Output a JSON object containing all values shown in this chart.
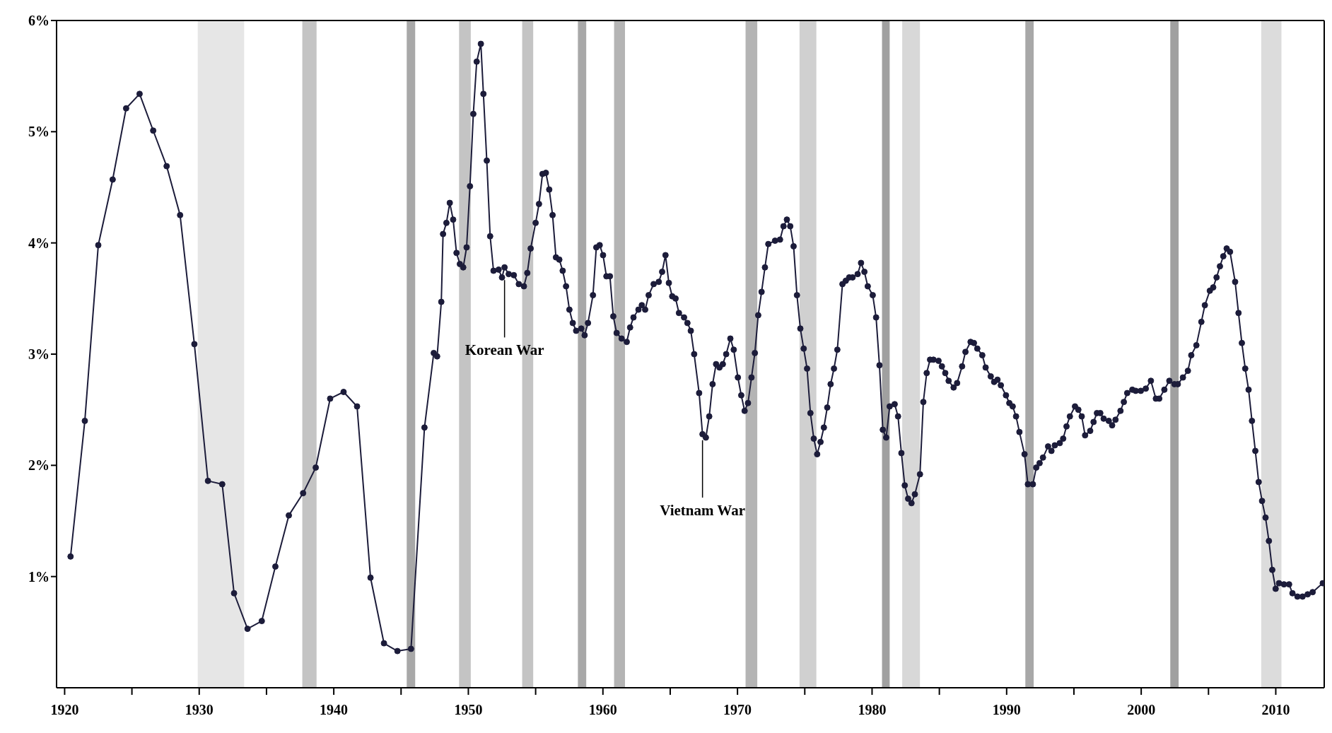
{
  "chart_data": {
    "type": "line",
    "color": "#1c1c3a",
    "marker": "circle",
    "line_style": "solid",
    "x": [
      1920.44,
      1921.5,
      1922.5,
      1923.57,
      1924.57,
      1925.57,
      1926.58,
      1927.58,
      1928.58,
      1929.64,
      1930.65,
      1931.71,
      1932.59,
      1933.59,
      1934.65,
      1935.66,
      1936.66,
      1937.72,
      1938.66,
      1939.73,
      1940.73,
      1941.73,
      1942.73,
      1943.73,
      1944.73,
      1945.74,
      1946.74,
      1947.43,
      1947.68,
      1947.99,
      1948.12,
      1948.37,
      1948.62,
      1948.87,
      1949.12,
      1949.37,
      1949.62,
      1949.87,
      1950.12,
      1950.37,
      1950.62,
      1950.93,
      1951.12,
      1951.37,
      1951.62,
      1951.87,
      1952.25,
      1952.5,
      1952.69,
      1953.0,
      1953.38,
      1953.75,
      1954.13,
      1954.38,
      1954.63,
      1955.0,
      1955.25,
      1955.51,
      1955.76,
      1956.01,
      1956.26,
      1956.51,
      1956.76,
      1957.01,
      1957.26,
      1957.51,
      1957.76,
      1958.01,
      1958.39,
      1958.64,
      1958.89,
      1959.26,
      1959.51,
      1959.76,
      1960.01,
      1960.26,
      1960.52,
      1960.77,
      1961.02,
      1961.39,
      1961.77,
      1962.02,
      1962.27,
      1962.64,
      1962.89,
      1963.14,
      1963.4,
      1963.77,
      1964.15,
      1964.4,
      1964.65,
      1964.9,
      1965.15,
      1965.4,
      1965.65,
      1966.03,
      1966.28,
      1966.53,
      1966.78,
      1967.15,
      1967.4,
      1967.65,
      1967.9,
      1968.15,
      1968.41,
      1968.66,
      1968.91,
      1969.16,
      1969.47,
      1969.72,
      1970.03,
      1970.28,
      1970.53,
      1970.78,
      1971.04,
      1971.29,
      1971.54,
      1971.79,
      1972.04,
      1972.29,
      1972.79,
      1973.16,
      1973.42,
      1973.67,
      1973.92,
      1974.17,
      1974.42,
      1974.67,
      1974.92,
      1975.17,
      1975.42,
      1975.67,
      1975.92,
      1976.17,
      1976.42,
      1976.67,
      1976.92,
      1977.17,
      1977.42,
      1977.8,
      1978.05,
      1978.3,
      1978.55,
      1978.93,
      1979.18,
      1979.43,
      1979.68,
      1980.05,
      1980.3,
      1980.55,
      1980.8,
      1981.05,
      1981.31,
      1981.68,
      1981.93,
      1982.18,
      1982.43,
      1982.68,
      1982.93,
      1983.18,
      1983.56,
      1983.81,
      1984.06,
      1984.31,
      1984.56,
      1984.94,
      1985.19,
      1985.44,
      1985.69,
      1986.06,
      1986.32,
      1986.69,
      1986.94,
      1987.32,
      1987.57,
      1987.82,
      1988.19,
      1988.44,
      1988.82,
      1989.07,
      1989.32,
      1989.57,
      1989.95,
      1990.2,
      1990.45,
      1990.7,
      1990.95,
      1991.33,
      1991.58,
      1991.95,
      1992.2,
      1992.45,
      1992.7,
      1993.08,
      1993.33,
      1993.58,
      1993.95,
      1994.2,
      1994.45,
      1994.7,
      1995.08,
      1995.33,
      1995.58,
      1995.83,
      1996.21,
      1996.46,
      1996.71,
      1996.96,
      1997.21,
      1997.59,
      1997.84,
      1998.09,
      1998.46,
      1998.71,
      1998.96,
      1999.34,
      1999.59,
      1999.97,
      2000.34,
      2000.72,
      2001.09,
      2001.34,
      2001.72,
      2002.09,
      2002.47,
      2002.72,
      2003.1,
      2003.47,
      2003.72,
      2004.1,
      2004.47,
      2004.73,
      2005.1,
      2005.35,
      2005.6,
      2005.85,
      2006.1,
      2006.35,
      2006.6,
      2006.98,
      2007.23,
      2007.48,
      2007.73,
      2007.98,
      2008.23,
      2008.48,
      2008.73,
      2008.98,
      2009.24,
      2009.49,
      2009.74,
      2009.99,
      2010.24,
      2010.61,
      2010.99,
      2011.24,
      2011.61,
      2011.99,
      2012.37,
      2012.74,
      2013.49
    ],
    "values": [
      1.18,
      2.4,
      3.98,
      4.57,
      5.21,
      5.34,
      5.01,
      4.69,
      4.25,
      3.09,
      1.86,
      1.83,
      0.85,
      0.53,
      0.6,
      1.09,
      1.55,
      1.75,
      1.98,
      2.6,
      2.66,
      2.53,
      0.99,
      0.4,
      0.33,
      0.35,
      2.34,
      3.01,
      2.98,
      3.47,
      4.08,
      4.18,
      4.36,
      4.21,
      3.91,
      3.81,
      3.78,
      3.96,
      4.51,
      5.16,
      5.63,
      5.79,
      5.34,
      4.74,
      4.06,
      3.75,
      3.76,
      3.69,
      3.78,
      3.72,
      3.71,
      3.63,
      3.61,
      3.73,
      3.95,
      4.18,
      4.35,
      4.62,
      4.63,
      4.48,
      4.25,
      3.87,
      3.85,
      3.75,
      3.61,
      3.4,
      3.28,
      3.21,
      3.23,
      3.17,
      3.28,
      3.53,
      3.96,
      3.98,
      3.89,
      3.7,
      3.7,
      3.34,
      3.19,
      3.14,
      3.11,
      3.24,
      3.33,
      3.4,
      3.44,
      3.4,
      3.53,
      3.63,
      3.65,
      3.74,
      3.89,
      3.64,
      3.52,
      3.5,
      3.37,
      3.33,
      3.28,
      3.21,
      3.0,
      2.65,
      2.28,
      2.25,
      2.44,
      2.73,
      2.91,
      2.88,
      2.91,
      3.0,
      3.14,
      3.04,
      2.79,
      2.63,
      2.49,
      2.56,
      2.79,
      3.01,
      3.35,
      3.56,
      3.78,
      3.99,
      4.02,
      4.03,
      4.15,
      4.21,
      4.15,
      3.97,
      3.53,
      3.23,
      3.05,
      2.87,
      2.47,
      2.24,
      2.1,
      2.21,
      2.34,
      2.52,
      2.73,
      2.87,
      3.04,
      3.63,
      3.66,
      3.69,
      3.69,
      3.72,
      3.82,
      3.74,
      3.61,
      3.53,
      3.33,
      2.9,
      2.32,
      2.25,
      2.53,
      2.55,
      2.44,
      2.11,
      1.82,
      1.7,
      1.66,
      1.74,
      1.92,
      2.57,
      2.83,
      2.95,
      2.95,
      2.94,
      2.89,
      2.83,
      2.76,
      2.7,
      2.74,
      2.89,
      3.02,
      3.11,
      3.1,
      3.05,
      2.99,
      2.88,
      2.8,
      2.75,
      2.77,
      2.72,
      2.63,
      2.56,
      2.53,
      2.44,
      2.3,
      2.1,
      1.83,
      1.83,
      1.98,
      2.02,
      2.07,
      2.17,
      2.13,
      2.18,
      2.2,
      2.24,
      2.35,
      2.44,
      2.53,
      2.5,
      2.44,
      2.27,
      2.31,
      2.39,
      2.47,
      2.47,
      2.42,
      2.4,
      2.36,
      2.41,
      2.49,
      2.57,
      2.65,
      2.68,
      2.67,
      2.67,
      2.69,
      2.76,
      2.6,
      2.6,
      2.68,
      2.76,
      2.73,
      2.73,
      2.79,
      2.85,
      2.99,
      3.08,
      3.29,
      3.44,
      3.57,
      3.6,
      3.69,
      3.79,
      3.88,
      3.95,
      3.92,
      3.65,
      3.37,
      3.1,
      2.87,
      2.68,
      2.4,
      2.13,
      1.85,
      1.68,
      1.53,
      1.32,
      1.06,
      0.89,
      0.94,
      0.93,
      0.93,
      0.85,
      0.82,
      0.82,
      0.84,
      0.86,
      0.94
    ],
    "xlim": [
      1919.4,
      2013.6
    ],
    "xticks": [
      1920,
      {
        "value": 1925,
        "label": null
      },
      1930,
      {
        "value": 1935,
        "label": null
      },
      1940,
      {
        "value": 1945,
        "label": null
      },
      1950,
      {
        "value": 1955,
        "label": null
      },
      1960,
      {
        "value": 1965,
        "label": null
      },
      1970,
      {
        "value": 1975,
        "label": null
      },
      1980,
      {
        "value": 1985,
        "label": null
      },
      1990,
      {
        "value": 1995,
        "label": null
      },
      2000,
      {
        "value": 2005,
        "label": null
      },
      2010
    ],
    "ylim": [
      0,
      6
    ],
    "yticks": [
      {
        "value": 1,
        "label": "1%"
      },
      {
        "value": 2,
        "label": "2%"
      },
      {
        "value": 3,
        "label": "3%"
      },
      {
        "value": 4,
        "label": "4%"
      },
      {
        "value": 5,
        "label": "5%"
      },
      {
        "value": 6,
        "label": "6%"
      }
    ],
    "bands": [
      {
        "axis": "x",
        "from": 1929.89,
        "to": 1933.34,
        "color": "#e6e6e6"
      },
      {
        "axis": "x",
        "from": 1937.66,
        "to": 1938.72,
        "color": "#c4c4c4"
      },
      {
        "axis": "x",
        "from": 1945.42,
        "to": 1946.05,
        "color": "#a8a8a8"
      },
      {
        "axis": "x",
        "from": 1949.31,
        "to": 1950.18,
        "color": "#c4c4c4"
      },
      {
        "axis": "x",
        "from": 1954.0,
        "to": 1954.82,
        "color": "#c4c4c4"
      },
      {
        "axis": "x",
        "from": 1958.14,
        "to": 1958.76,
        "color": "#a8a8a8"
      },
      {
        "axis": "x",
        "from": 1960.83,
        "to": 1961.64,
        "color": "#b4b4b4"
      },
      {
        "axis": "x",
        "from": 1970.6,
        "to": 1971.47,
        "color": "#b4b4b4"
      },
      {
        "axis": "x",
        "from": 1974.61,
        "to": 1975.86,
        "color": "#d0d0d0"
      },
      {
        "axis": "x",
        "from": 1980.74,
        "to": 1981.31,
        "color": "#a0a0a0"
      },
      {
        "axis": "x",
        "from": 1982.24,
        "to": 1983.56,
        "color": "#d8d8d8"
      },
      {
        "axis": "x",
        "from": 1991.39,
        "to": 1992.01,
        "color": "#a8a8a8"
      },
      {
        "axis": "x",
        "from": 2002.16,
        "to": 2002.78,
        "color": "#a0a0a0"
      },
      {
        "axis": "x",
        "from": 2008.92,
        "to": 2010.42,
        "color": "#dcdcdc"
      }
    ],
    "annotations": [
      {
        "text": "Korean War",
        "x": 1952.69,
        "y": 3.69
      },
      {
        "text": "Vietnam War",
        "x": 1967.4,
        "y": 2.25
      }
    ]
  }
}
